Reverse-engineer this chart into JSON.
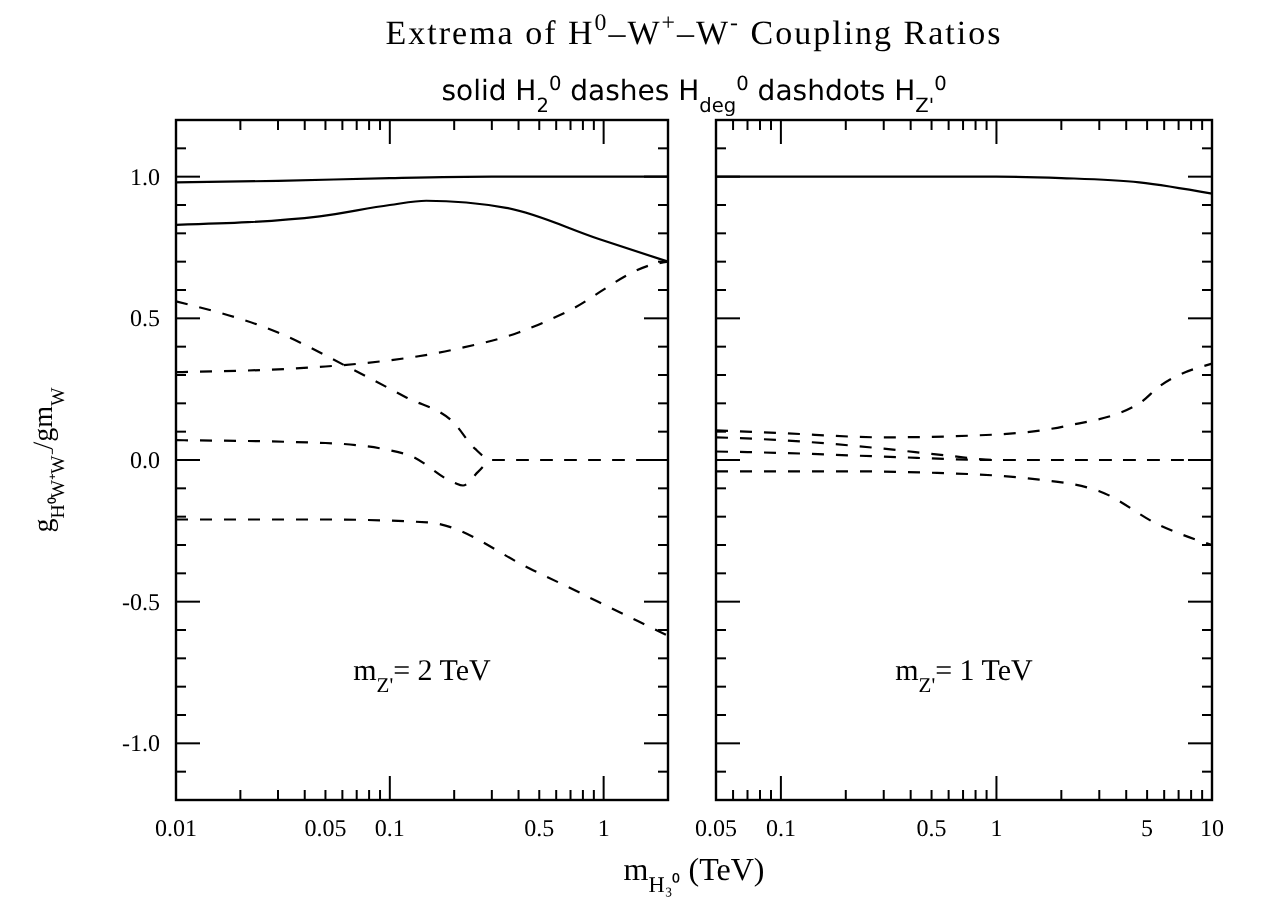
{
  "chart_data": [
    {
      "type": "line",
      "title": "Extrema of H$^{0}$–W$^{+}$–W$^{-}$ Coupling Ratios",
      "subtitle": "solid  H$_{2}$$^{0}$    dashes  H$_{deg}$$^{0}$    dashdots  H$_{Z'}$$^{0}$",
      "xlabel": "m$_{H₃⁰}$ (TeV)",
      "ylabel": "g$_{H⁰W⁺W⁻}$/gm$_{W}$",
      "log": "x",
      "grid": false,
      "tick_labels": true,
      "annotations": [
        "m$_{Z'}$=  2 TeV"
      ],
      "xlim": [
        0.01,
        2
      ],
      "ylim": [
        -1.2,
        1.2
      ],
      "xticks": [
        {
          "value": 0.01,
          "label": "0.01"
        },
        {
          "value": 0.02,
          "label": null
        },
        {
          "value": 0.03,
          "label": null
        },
        {
          "value": 0.04,
          "label": null
        },
        {
          "value": 0.05,
          "label": "0.05"
        },
        {
          "value": 0.06,
          "label": null
        },
        {
          "value": 0.07,
          "label": null
        },
        {
          "value": 0.08,
          "label": null
        },
        {
          "value": 0.09,
          "label": null
        },
        {
          "value": 0.1,
          "label": "0.1"
        },
        {
          "value": 0.2,
          "label": null
        },
        {
          "value": 0.3,
          "label": null
        },
        {
          "value": 0.4,
          "label": null
        },
        {
          "value": 0.5,
          "label": "0.5"
        },
        {
          "value": 0.6,
          "label": null
        },
        {
          "value": 0.7,
          "label": null
        },
        {
          "value": 0.8,
          "label": null
        },
        {
          "value": 0.9,
          "label": null
        },
        {
          "value": 1,
          "label": "1"
        },
        {
          "value": 2,
          "label": null
        }
      ],
      "yticks": [
        {
          "value": -1.1,
          "label": null
        },
        {
          "value": -1,
          "label": "-1.0"
        },
        {
          "value": -0.9,
          "label": null
        },
        {
          "value": -0.8,
          "label": null
        },
        {
          "value": -0.7,
          "label": null
        },
        {
          "value": -0.6,
          "label": null
        },
        {
          "value": -0.5,
          "label": "-0.5"
        },
        {
          "value": -0.4,
          "label": null
        },
        {
          "value": -0.3,
          "label": null
        },
        {
          "value": -0.2,
          "label": null
        },
        {
          "value": -0.1,
          "label": null
        },
        {
          "value": 0,
          "label": "0.0"
        },
        {
          "value": 0.1,
          "label": null
        },
        {
          "value": 0.2,
          "label": null
        },
        {
          "value": 0.3,
          "label": null
        },
        {
          "value": 0.4,
          "label": null
        },
        {
          "value": 0.5,
          "label": "0.5"
        },
        {
          "value": 0.6,
          "label": null
        },
        {
          "value": 0.7,
          "label": null
        },
        {
          "value": 0.8,
          "label": null
        },
        {
          "value": 0.9,
          "label": null
        },
        {
          "value": 1,
          "label": "1.0"
        },
        {
          "value": 1.1,
          "label": null
        }
      ],
      "series": [
        {
          "color": "#000000",
          "line_style": "solid",
          "x": [
            0.01,
            0.03,
            0.1,
            0.3,
            1,
            2
          ],
          "values": [
            0.98,
            0.985,
            0.995,
            1.0,
            1.0,
            1.0
          ]
        },
        {
          "color": "#000000",
          "line_style": "solid",
          "x": [
            0.01,
            0.047,
            0.1,
            0.148,
            0.35,
            0.95,
            2
          ],
          "values": [
            0.83,
            0.86,
            0.9,
            0.915,
            0.89,
            0.78,
            0.7
          ]
        },
        {
          "color": "#000000",
          "line_style": "dashed",
          "x": [
            0.01,
            0.03,
            0.063,
            0.12,
            0.2,
            0.25,
            0.3,
            0.5,
            1,
            2
          ],
          "values": [
            0.56,
            0.45,
            0.33,
            0.22,
            0.13,
            0.04,
            0.0,
            0.0,
            0.0,
            0.0
          ]
        },
        {
          "color": "#000000",
          "line_style": "dashed",
          "x": [
            0.01,
            0.05,
            0.12,
            0.2,
            0.22,
            0.26,
            0.3,
            0.5,
            1,
            2
          ],
          "values": [
            0.07,
            0.06,
            0.02,
            -0.08,
            -0.09,
            -0.04,
            0.0,
            0.0,
            0.0,
            0.0
          ]
        },
        {
          "color": "#000000",
          "line_style": "dashed",
          "x": [
            0.01,
            0.05,
            0.2,
            0.4,
            0.66,
            1.7,
            2
          ],
          "values": [
            0.31,
            0.33,
            0.39,
            0.45,
            0.52,
            0.69,
            0.7
          ]
        },
        {
          "color": "#000000",
          "line_style": "dashed",
          "x": [
            0.01,
            0.05,
            0.15,
            0.47,
            1.37,
            2
          ],
          "values": [
            -0.21,
            -0.21,
            -0.22,
            -0.39,
            -0.56,
            -0.62
          ]
        }
      ]
    },
    {
      "type": "line",
      "annotations": [
        "m$_{Z'}$=  1 TeV"
      ],
      "log": "x",
      "grid": false,
      "tick_labels": "x",
      "xlim": [
        0.05,
        10
      ],
      "ylim": [
        -1.2,
        1.2
      ],
      "yticks": [
        {
          "value": -1.1,
          "label": null
        },
        -1,
        {
          "value": -0.9,
          "label": null
        },
        {
          "value": -0.8,
          "label": null
        },
        {
          "value": -0.7,
          "label": null
        },
        {
          "value": -0.6,
          "label": null
        },
        -0.5,
        {
          "value": -0.4,
          "label": null
        },
        {
          "value": -0.3,
          "label": null
        },
        {
          "value": -0.2,
          "label": null
        },
        {
          "value": -0.1,
          "label": null
        },
        0,
        {
          "value": 0.1,
          "label": null
        },
        {
          "value": 0.2,
          "label": null
        },
        {
          "value": 0.3,
          "label": null
        },
        {
          "value": 0.4,
          "label": null
        },
        0.5,
        {
          "value": 0.6,
          "label": null
        },
        {
          "value": 0.7,
          "label": null
        },
        {
          "value": 0.8,
          "label": null
        },
        {
          "value": 0.9,
          "label": null
        },
        1,
        {
          "value": 1.1,
          "label": null
        }
      ],
      "xticks": [
        {
          "value": 0.05,
          "label": "0.05"
        },
        {
          "value": 0.06,
          "label": null
        },
        {
          "value": 0.07,
          "label": null
        },
        {
          "value": 0.08,
          "label": null
        },
        {
          "value": 0.09,
          "label": null
        },
        {
          "value": 0.1,
          "label": "0.1"
        },
        {
          "value": 0.2,
          "label": null
        },
        {
          "value": 0.3,
          "label": null
        },
        {
          "value": 0.4,
          "label": null
        },
        {
          "value": 0.5,
          "label": "0.5"
        },
        {
          "value": 0.6,
          "label": null
        },
        {
          "value": 0.7,
          "label": null
        },
        {
          "value": 0.8,
          "label": null
        },
        {
          "value": 0.9,
          "label": null
        },
        {
          "value": 1,
          "label": "1"
        },
        {
          "value": 2,
          "label": null
        },
        {
          "value": 3,
          "label": null
        },
        {
          "value": 4,
          "label": null
        },
        {
          "value": 5,
          "label": "5"
        },
        {
          "value": 6,
          "label": null
        },
        {
          "value": 7,
          "label": null
        },
        {
          "value": 8,
          "label": null
        },
        {
          "value": 9,
          "label": null
        },
        {
          "value": 10,
          "label": "10"
        }
      ],
      "series": [
        {
          "color": "#000000",
          "line_style": "solid",
          "x": [
            0.05,
            0.5,
            1,
            2,
            4.6,
            10
          ],
          "values": [
            1.0,
            1.0,
            1.0,
            0.995,
            0.98,
            0.94
          ]
        },
        {
          "color": "#000000",
          "line_style": "dashed",
          "x": [
            0.05,
            0.1,
            0.3,
            1,
            2.1,
            4.6,
            5.7,
            10
          ],
          "values": [
            0.105,
            0.095,
            0.08,
            0.09,
            0.12,
            0.2,
            0.26,
            0.34
          ]
        },
        {
          "color": "#000000",
          "line_style": "dashed",
          "x": [
            0.05,
            0.1,
            0.3,
            0.6,
            1,
            3,
            10
          ],
          "values": [
            0.08,
            0.07,
            0.04,
            0.015,
            0.0,
            0.0,
            0.0
          ]
        },
        {
          "color": "#000000",
          "line_style": "dashed",
          "x": [
            0.05,
            0.1,
            0.3,
            1,
            3,
            10
          ],
          "values": [
            0.03,
            0.025,
            0.012,
            0.0,
            0.0,
            0.0
          ]
        },
        {
          "color": "#000000",
          "line_style": "dashed",
          "x": [
            0.05,
            0.2,
            0.5,
            1.4,
            3,
            5.7,
            10
          ],
          "values": [
            -0.04,
            -0.04,
            -0.045,
            -0.065,
            -0.11,
            -0.23,
            -0.3
          ]
        }
      ]
    }
  ]
}
